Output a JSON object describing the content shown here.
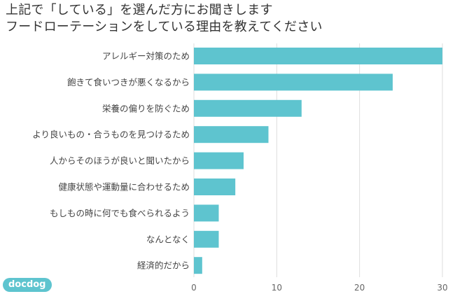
{
  "title_lines": [
    "上記で「している」を選んだ方にお聞きします",
    "フードローテーションをしている理由を教えてください"
  ],
  "logo_text": "docdog",
  "colors": {
    "bar": "#5ec4cf",
    "grid": "#dddddd"
  },
  "chart_data": {
    "type": "bar",
    "orientation": "horizontal",
    "title": "上記で「している」を選んだ方にお聞きします フードローテーションをしている理由を教えてください",
    "categories": [
      "アレルギー対策のため",
      "飽きて食いつきが悪くなるから",
      "栄養の偏りを防ぐため",
      "より良いもの・合うものを見つけるため",
      "人からそのほうが良いと聞いたから",
      "健康状態や運動量に合わせるため",
      "もしもの時に何でも食べられるよう",
      "なんとなく",
      "経済的だから"
    ],
    "values": [
      30,
      24,
      13,
      9,
      6,
      5,
      3,
      3,
      1
    ],
    "xlim": [
      0,
      30
    ],
    "xticks": [
      0,
      10,
      20,
      30
    ],
    "xticks_labels": [
      "0",
      "10",
      "20",
      "30"
    ],
    "grid": true
  }
}
